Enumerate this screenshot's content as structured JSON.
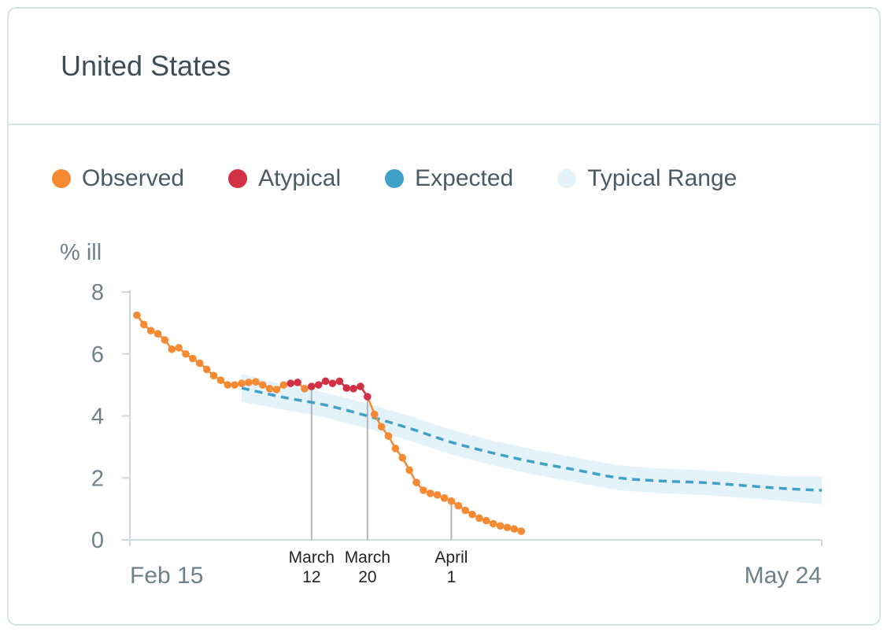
{
  "card": {
    "title": "United States"
  },
  "legend": [
    {
      "label": "Observed",
      "color": "#f58a33",
      "icon": "filled-circle"
    },
    {
      "label": "Atypical",
      "color": "#d23145",
      "icon": "filled-circle"
    },
    {
      "label": "Expected",
      "color": "#3fa0c8",
      "icon": "filled-circle"
    },
    {
      "label": "Typical Range",
      "color": "#e3f3f9",
      "icon": "filled-circle"
    }
  ],
  "chart_data": {
    "type": "line",
    "title": "United States",
    "ylabel": "% ill",
    "xlabel": "",
    "ylim": [
      0,
      8
    ],
    "yticks": [
      0,
      2,
      4,
      6,
      8
    ],
    "x_start_label": "Feb 15",
    "x_end_label": "May 24",
    "x_range_days": [
      0,
      99
    ],
    "grid": false,
    "annotations": [
      {
        "day": 26,
        "lines": [
          "March",
          "12"
        ]
      },
      {
        "day": 34,
        "lines": [
          "March",
          "20"
        ]
      },
      {
        "day": 46,
        "lines": [
          "April",
          "1"
        ]
      }
    ],
    "observed": {
      "name": "Observed",
      "color": "#f58a33",
      "atypical_color": "#d23145",
      "points": [
        {
          "d": 1,
          "v": 7.25
        },
        {
          "d": 2,
          "v": 6.95
        },
        {
          "d": 3,
          "v": 6.75
        },
        {
          "d": 4,
          "v": 6.65
        },
        {
          "d": 5,
          "v": 6.45
        },
        {
          "d": 6,
          "v": 6.15
        },
        {
          "d": 7,
          "v": 6.2
        },
        {
          "d": 8,
          "v": 6.0
        },
        {
          "d": 9,
          "v": 5.85
        },
        {
          "d": 10,
          "v": 5.7
        },
        {
          "d": 11,
          "v": 5.5
        },
        {
          "d": 12,
          "v": 5.3
        },
        {
          "d": 13,
          "v": 5.15
        },
        {
          "d": 14,
          "v": 5.0
        },
        {
          "d": 15,
          "v": 5.0
        },
        {
          "d": 16,
          "v": 5.05
        },
        {
          "d": 17,
          "v": 5.08
        },
        {
          "d": 18,
          "v": 5.1
        },
        {
          "d": 19,
          "v": 5.0
        },
        {
          "d": 20,
          "v": 4.88
        },
        {
          "d": 21,
          "v": 4.85
        },
        {
          "d": 22,
          "v": 5.0
        },
        {
          "d": 23,
          "v": 5.05,
          "a": true
        },
        {
          "d": 24,
          "v": 5.08,
          "a": true
        },
        {
          "d": 25,
          "v": 4.88
        },
        {
          "d": 26,
          "v": 4.95,
          "a": true
        },
        {
          "d": 27,
          "v": 5.0,
          "a": true
        },
        {
          "d": 28,
          "v": 5.12,
          "a": true
        },
        {
          "d": 29,
          "v": 5.05,
          "a": true
        },
        {
          "d": 30,
          "v": 5.12,
          "a": true
        },
        {
          "d": 31,
          "v": 4.9,
          "a": true
        },
        {
          "d": 32,
          "v": 4.88,
          "a": true
        },
        {
          "d": 33,
          "v": 4.95,
          "a": true
        },
        {
          "d": 34,
          "v": 4.62,
          "a": true
        },
        {
          "d": 35,
          "v": 4.05
        },
        {
          "d": 36,
          "v": 3.65
        },
        {
          "d": 37,
          "v": 3.35
        },
        {
          "d": 38,
          "v": 2.95
        },
        {
          "d": 39,
          "v": 2.65
        },
        {
          "d": 40,
          "v": 2.25
        },
        {
          "d": 41,
          "v": 1.85
        },
        {
          "d": 42,
          "v": 1.6
        },
        {
          "d": 43,
          "v": 1.5
        },
        {
          "d": 44,
          "v": 1.45
        },
        {
          "d": 45,
          "v": 1.35
        },
        {
          "d": 46,
          "v": 1.25
        },
        {
          "d": 47,
          "v": 1.1
        },
        {
          "d": 48,
          "v": 0.95
        },
        {
          "d": 49,
          "v": 0.82
        },
        {
          "d": 50,
          "v": 0.7
        },
        {
          "d": 51,
          "v": 0.62
        },
        {
          "d": 52,
          "v": 0.52
        },
        {
          "d": 53,
          "v": 0.45
        },
        {
          "d": 54,
          "v": 0.4
        },
        {
          "d": 55,
          "v": 0.35
        },
        {
          "d": 56,
          "v": 0.28
        }
      ]
    },
    "expected": {
      "name": "Expected",
      "color": "#3fa0c8",
      "points": [
        {
          "d": 16,
          "v": 4.9
        },
        {
          "d": 22,
          "v": 4.6
        },
        {
          "d": 28,
          "v": 4.35
        },
        {
          "d": 34,
          "v": 4.0
        },
        {
          "d": 40,
          "v": 3.6
        },
        {
          "d": 46,
          "v": 3.15
        },
        {
          "d": 52,
          "v": 2.8
        },
        {
          "d": 58,
          "v": 2.5
        },
        {
          "d": 64,
          "v": 2.25
        },
        {
          "d": 70,
          "v": 2.0
        },
        {
          "d": 76,
          "v": 1.9
        },
        {
          "d": 82,
          "v": 1.85
        },
        {
          "d": 88,
          "v": 1.75
        },
        {
          "d": 94,
          "v": 1.65
        },
        {
          "d": 99,
          "v": 1.6
        }
      ]
    },
    "typical_range": {
      "name": "Typical Range",
      "color": "#e3f3f9",
      "points": [
        {
          "d": 16,
          "lo": 4.45,
          "hi": 5.35
        },
        {
          "d": 22,
          "lo": 4.2,
          "hi": 5.0
        },
        {
          "d": 28,
          "lo": 3.95,
          "hi": 4.75
        },
        {
          "d": 34,
          "lo": 3.6,
          "hi": 4.4
        },
        {
          "d": 40,
          "lo": 3.2,
          "hi": 4.0
        },
        {
          "d": 46,
          "lo": 2.75,
          "hi": 3.55
        },
        {
          "d": 52,
          "lo": 2.4,
          "hi": 3.2
        },
        {
          "d": 58,
          "lo": 2.1,
          "hi": 2.9
        },
        {
          "d": 64,
          "lo": 1.85,
          "hi": 2.65
        },
        {
          "d": 70,
          "lo": 1.6,
          "hi": 2.4
        },
        {
          "d": 76,
          "lo": 1.5,
          "hi": 2.3
        },
        {
          "d": 82,
          "lo": 1.45,
          "hi": 2.25
        },
        {
          "d": 88,
          "lo": 1.35,
          "hi": 2.15
        },
        {
          "d": 94,
          "lo": 1.25,
          "hi": 2.05
        },
        {
          "d": 99,
          "lo": 1.15,
          "hi": 2.05
        }
      ]
    }
  }
}
